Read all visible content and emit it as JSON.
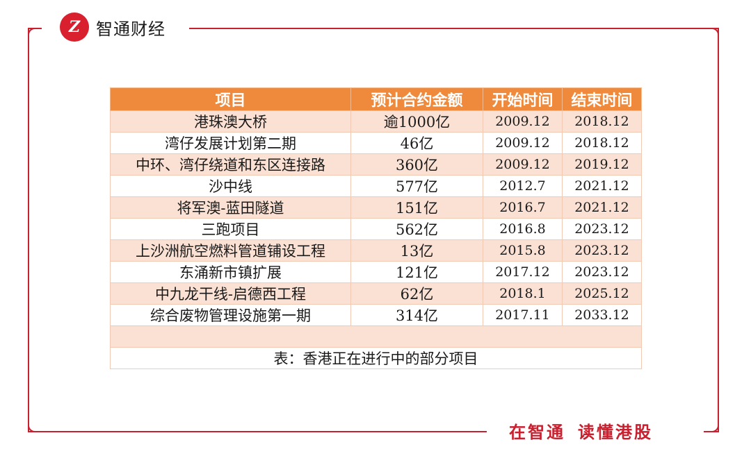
{
  "brand": {
    "name": "智通财经",
    "logo_letter": "Z",
    "color": "#d8202f"
  },
  "slogan": {
    "part1": "在智通",
    "part2": "读懂港股"
  },
  "table": {
    "headers": [
      "项目",
      "预计合约金额",
      "开始时间",
      "结束时间"
    ],
    "rows": [
      [
        "港珠澳大桥",
        "逾1000亿",
        "2009.12",
        "2018.12"
      ],
      [
        "湾仔发展计划第二期",
        "46亿",
        "2009.12",
        "2018.12"
      ],
      [
        "中环、湾仔绕道和东区连接路",
        "360亿",
        "2009.12",
        "2019.12"
      ],
      [
        "沙中线",
        "577亿",
        "2012.7",
        "2021.12"
      ],
      [
        "将军澳-蓝田隧道",
        "151亿",
        "2016.7",
        "2021.12"
      ],
      [
        "三跑项目",
        "562亿",
        "2016.8",
        "2023.12"
      ],
      [
        "上沙洲航空燃料管道铺设工程",
        "13亿",
        "2015.8",
        "2023.12"
      ],
      [
        "东涌新市镇扩展",
        "121亿",
        "2017.12",
        "2023.12"
      ],
      [
        "中九龙干线-启德西工程",
        "62亿",
        "2018.1",
        "2025.12"
      ],
      [
        "综合废物管理设施第一期",
        "314亿",
        "2017.11",
        "2033.12"
      ]
    ],
    "caption": "表：香港正在进行中的部分项目",
    "header_color": "#ef8a3c",
    "stripe_color": "#fbe1d4"
  }
}
